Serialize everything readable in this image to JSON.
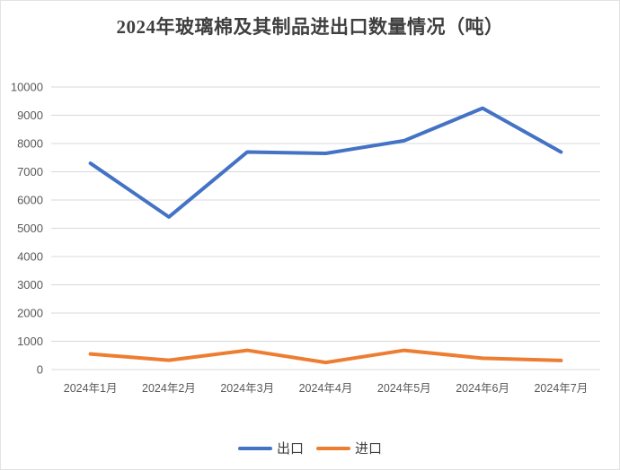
{
  "title": "2024年玻璃棉及其制品进出口数量情况（吨）",
  "chart_data": {
    "type": "line",
    "title": "2024年玻璃棉及其制品进出口数量情况（吨）",
    "categories": [
      "2024年1月",
      "2024年2月",
      "2024年3月",
      "2024年4月",
      "2024年5月",
      "2024年6月",
      "2024年7月"
    ],
    "series": [
      {
        "key": "export",
        "name": "出口",
        "color": "#4472C4",
        "values": [
          7300,
          5400,
          7700,
          7650,
          8100,
          9250,
          7700
        ]
      },
      {
        "key": "import",
        "name": "进口",
        "color": "#ED7D31",
        "values": [
          550,
          330,
          680,
          250,
          680,
          400,
          320
        ]
      }
    ],
    "xlabel": "",
    "ylabel": "",
    "ylim": [
      0,
      10000
    ],
    "ytick_step": 1000,
    "grid": "horizontal",
    "legend_position": "bottom",
    "colors": {
      "gridline": "#d9d9d9",
      "tick_label": "#595959",
      "title_text": "#3f3f3f",
      "background": "#ffffff"
    }
  }
}
